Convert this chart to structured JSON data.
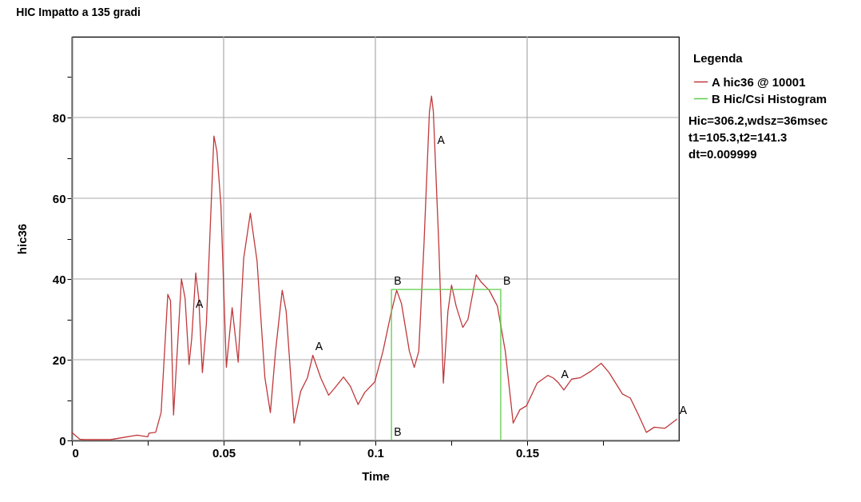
{
  "chart_data": {
    "type": "line",
    "title": "HIC Impatto a 135 gradi",
    "xlabel": "Time",
    "ylabel": "hic36",
    "legend_title": "Legenda",
    "xlim": [
      0,
      0.2
    ],
    "ylim": [
      0,
      100
    ],
    "xticks": [
      0,
      {
        "value": 0.025,
        "label": null
      },
      0.05,
      {
        "value": 0.075,
        "label": null
      },
      0.1,
      {
        "value": 0.125,
        "label": null
      },
      0.15,
      {
        "value": 0.175,
        "label": null
      }
    ],
    "yticks": [
      0,
      {
        "value": 10,
        "label": null
      },
      20,
      {
        "value": 30,
        "label": null
      },
      40,
      {
        "value": 50,
        "label": null
      },
      60,
      {
        "value": 70,
        "label": null
      },
      80,
      {
        "value": 90,
        "label": null
      }
    ],
    "grid": true,
    "legend": "top right",
    "series": [
      {
        "name": "A hic36 @ 10001",
        "color": "#c0393b",
        "x": [
          0,
          0.0026,
          0.004,
          0.0127,
          0.0215,
          0.025,
          0.0254,
          0.0276,
          0.0294,
          0.0316,
          0.0325,
          0.0335,
          0.0342,
          0.0361,
          0.0373,
          0.0386,
          0.0395,
          0.0408,
          0.0418,
          0.043,
          0.0443,
          0.0468,
          0.0478,
          0.0491,
          0.0509,
          0.0528,
          0.0548,
          0.0566,
          0.0588,
          0.061,
          0.0636,
          0.0654,
          0.0671,
          0.0693,
          0.0706,
          0.0732,
          0.0754,
          0.0776,
          0.0794,
          0.082,
          0.0846,
          0.0864,
          0.0895,
          0.0917,
          0.0943,
          0.0965,
          0.0998,
          0.1025,
          0.1051,
          0.107,
          0.1086,
          0.1112,
          0.1128,
          0.1143,
          0.116,
          0.1178,
          0.1185,
          0.1191,
          0.1209,
          0.1224,
          0.1239,
          0.1251,
          0.1266,
          0.1288,
          0.1305,
          0.1332,
          0.1349,
          0.1375,
          0.1402,
          0.1428,
          0.1454,
          0.1476,
          0.1498,
          0.1533,
          0.1568,
          0.1586,
          0.1604,
          0.1621,
          0.1647,
          0.1674,
          0.1709,
          0.1744,
          0.177,
          0.1814,
          0.184,
          0.1867,
          0.1893,
          0.1919,
          0.1954,
          0.1994
        ],
        "values": [
          2.0,
          0.3,
          0.2,
          0.2,
          1.3,
          0.9,
          1.8,
          2.0,
          6.9,
          36.2,
          34.6,
          6.3,
          15.5,
          40.0,
          35.2,
          18.8,
          25.4,
          41.5,
          35.2,
          16.8,
          28.7,
          75.4,
          71.5,
          58.3,
          18.1,
          32.9,
          19.4,
          45.1,
          56.3,
          44.5,
          15.5,
          6.9,
          22.1,
          37.2,
          32.0,
          4.3,
          12.2,
          15.5,
          21.1,
          15.5,
          11.2,
          12.8,
          15.7,
          13.5,
          8.9,
          11.9,
          14.5,
          22.1,
          31.3,
          37.2,
          33.9,
          22.1,
          18.1,
          22.1,
          48.4,
          81.4,
          85.3,
          81.4,
          48.4,
          14.2,
          32.0,
          38.5,
          33.3,
          28.0,
          30.0,
          41.0,
          39.2,
          37.2,
          33.3,
          22.1,
          4.3,
          7.6,
          8.6,
          14.2,
          16.1,
          15.5,
          14.2,
          12.5,
          15.2,
          15.5,
          17.1,
          19.1,
          16.8,
          11.5,
          10.5,
          6.3,
          2.0,
          3.3,
          3.0,
          5.3
        ]
      },
      {
        "name": "B Hic/Csi Histogram",
        "color": "#5ccf4a",
        "x": [
          0.1053,
          0.1053,
          0.1413,
          0.1413
        ],
        "values": [
          0,
          37.4,
          37.4,
          0
        ]
      }
    ],
    "annotations": [
      {
        "text": "A",
        "x": 0.04,
        "y": 31.6
      },
      {
        "text": "A",
        "x": 0.0794,
        "y": 21.1
      },
      {
        "text": "A",
        "x": 0.1196,
        "y": 72.2
      },
      {
        "text": "A",
        "x": 0.1604,
        "y": 14.2
      },
      {
        "text": "A",
        "x": 0.1994,
        "y": 5.3
      },
      {
        "text": "B",
        "x": 0.1053,
        "y": 37.4
      },
      {
        "text": "B",
        "x": 0.1413,
        "y": 37.4
      },
      {
        "text": "B",
        "x": 0.1053,
        "y": 0
      },
      "Hic=306.2,wdsz=36msec",
      "t1=105.3,t2=141.3",
      "dt=0.009999"
    ]
  }
}
